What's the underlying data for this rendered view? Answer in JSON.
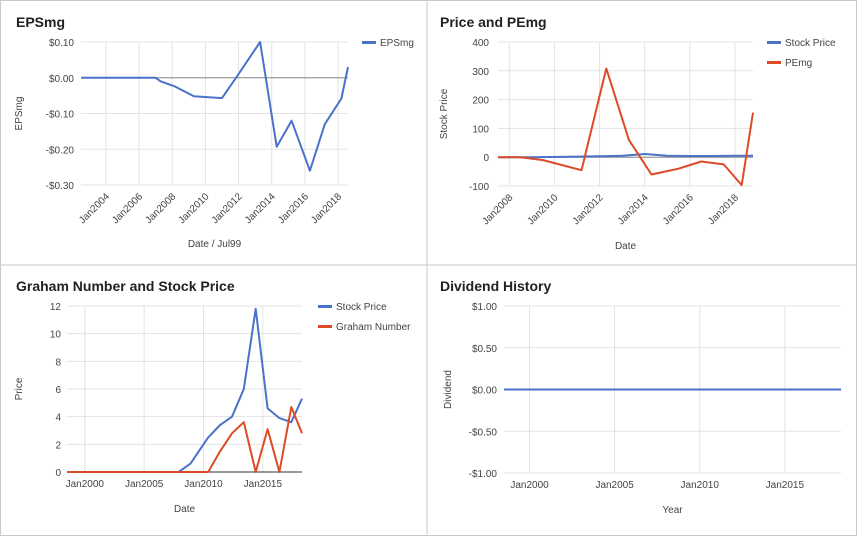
{
  "colors": {
    "blue": "#4a72c8",
    "red": "#dc4a26",
    "grid": "#e3e3e3",
    "axis": "#b8b8b8",
    "text": "#444444",
    "title": "#222222",
    "border": "#c9c9c9"
  },
  "chart_data": [
    {
      "id": "eps",
      "type": "line",
      "title": "EPSmg",
      "xlabel": "Date / Jul99",
      "ylabel": "EPSmg",
      "xlim": [
        2002.5,
        2018.6
      ],
      "ylim": [
        -0.3,
        0.1
      ],
      "yticks": [
        0.1,
        0.0,
        -0.1,
        -0.2,
        -0.3
      ],
      "ytick_labels": [
        "$0.10",
        "$0.00",
        "-$0.10",
        "-$0.20",
        "-$0.30"
      ],
      "xticks": [
        2004,
        2006,
        2008,
        2010,
        2012,
        2014,
        2016,
        2018
      ],
      "xtick_labels": [
        "Jan2004",
        "Jan2006",
        "Jan2008",
        "Jan2010",
        "Jan2012",
        "Jan2014",
        "Jan2016",
        "Jan2018"
      ],
      "legend": "top-right",
      "zero_line": true,
      "series": [
        {
          "name": "EPSmg",
          "color": "#4a72c8",
          "x": [
            2002.5,
            2007,
            2007.3,
            2008.2,
            2009.3,
            2011,
            2012,
            2013.3,
            2014.3,
            2015.2,
            2016.3,
            2017.2,
            2018.2,
            2018.6
          ],
          "y": [
            0.0,
            0.0,
            -0.01,
            -0.025,
            -0.052,
            -0.057,
            0.01,
            0.1,
            -0.193,
            -0.12,
            -0.26,
            -0.13,
            -0.058,
            0.03
          ]
        }
      ]
    },
    {
      "id": "pe",
      "type": "line",
      "title": "Price and PEmg",
      "xlabel": "Date",
      "ylabel": "Stock Price",
      "xlim": [
        2007.5,
        2018.8
      ],
      "ylim": [
        -100,
        400
      ],
      "yticks": [
        400,
        300,
        200,
        100,
        0,
        -100
      ],
      "ytick_labels": [
        "400",
        "300",
        "200",
        "100",
        "0",
        "-100"
      ],
      "xticks": [
        2008,
        2010,
        2012,
        2014,
        2016,
        2018
      ],
      "xtick_labels": [
        "Jan2008",
        "Jan2010",
        "Jan2012",
        "Jan2014",
        "Jan2016",
        "Jan2018"
      ],
      "legend": "top-right",
      "series": [
        {
          "name": "Stock Price",
          "color": "#4a72c8",
          "x": [
            2007.5,
            2009,
            2011,
            2012,
            2013,
            2014,
            2015,
            2016,
            2017,
            2018,
            2018.8
          ],
          "y": [
            0,
            0,
            2,
            3,
            5,
            11,
            5,
            4,
            4,
            5,
            5
          ]
        },
        {
          "name": "PEmg",
          "color": "#dc4a26",
          "x": [
            2007.5,
            2008.5,
            2009.5,
            2011.2,
            2012.3,
            2013.3,
            2014.3,
            2015.5,
            2016.5,
            2017.5,
            2018.3,
            2018.8
          ],
          "y": [
            0,
            0,
            -10,
            -45,
            308,
            60,
            -60,
            -40,
            -15,
            -25,
            -97,
            155
          ]
        }
      ]
    },
    {
      "id": "graham",
      "type": "line",
      "title": "Graham Number and Stock Price",
      "xlabel": "Date",
      "ylabel": "Price",
      "xlim": [
        1998.5,
        2018.3
      ],
      "ylim": [
        0,
        12
      ],
      "yticks": [
        12,
        10,
        8,
        6,
        4,
        2,
        0
      ],
      "ytick_labels": [
        "12",
        "10",
        "8",
        "6",
        "4",
        "2",
        "0"
      ],
      "xticks": [
        2000,
        2005,
        2010,
        2015
      ],
      "xtick_labels": [
        "Jan2000",
        "Jan2005",
        "Jan2010",
        "Jan2015"
      ],
      "legend": "top-right",
      "series": [
        {
          "name": "Stock Price",
          "color": "#4a72c8",
          "x": [
            1998.5,
            2006.9,
            2007.9,
            2008.9,
            2010.4,
            2011.4,
            2012.4,
            2013.4,
            2014.4,
            2015.4,
            2016.4,
            2017.4,
            2018.3
          ],
          "y": [
            0,
            0,
            0,
            0.6,
            2.5,
            3.4,
            4.0,
            6.0,
            11.8,
            4.6,
            3.9,
            3.6,
            5.3
          ]
        },
        {
          "name": "Graham Number",
          "color": "#dc4a26",
          "x": [
            1998.5,
            2010.4,
            2011.4,
            2012.4,
            2013.4,
            2014.4,
            2015.4,
            2016.4,
            2017.4,
            2018.3
          ],
          "y": [
            0,
            0,
            1.5,
            2.8,
            3.6,
            0,
            3.1,
            0,
            4.7,
            2.8
          ]
        }
      ]
    },
    {
      "id": "div",
      "type": "line",
      "title": "Dividend History",
      "xlabel": "Year",
      "ylabel": "Dividend",
      "xlim": [
        1998.5,
        2018.3
      ],
      "ylim": [
        -1.0,
        1.0
      ],
      "yticks": [
        1.0,
        0.5,
        0.0,
        -0.5,
        -1.0
      ],
      "ytick_labels": [
        "$1.00",
        "$0.50",
        "$0.00",
        "-$0.50",
        "-$1.00"
      ],
      "xticks": [
        2000,
        2005,
        2010,
        2015
      ],
      "xtick_labels": [
        "Jan2000",
        "Jan2005",
        "Jan2010",
        "Jan2015"
      ],
      "legend": "none",
      "series": [
        {
          "color": "#4a72c8",
          "x": [
            1998.5,
            2018.3
          ],
          "y": [
            0,
            0
          ]
        }
      ]
    }
  ]
}
